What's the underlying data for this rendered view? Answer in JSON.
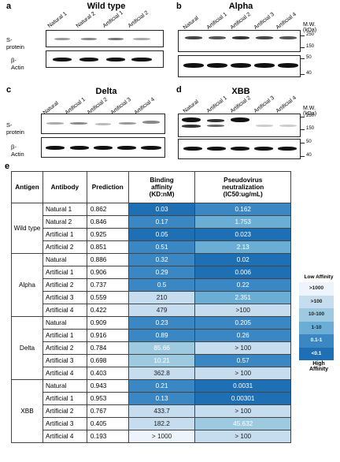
{
  "panels": {
    "a": {
      "letter": "a",
      "title": "Wild type",
      "lanes": [
        "Natural 1",
        "Natural 2",
        "Artificial 1",
        "Artificial 2"
      ],
      "mw": []
    },
    "b": {
      "letter": "b",
      "title": "Alpha",
      "lanes": [
        "Natural",
        "Artificial 1",
        "Artificial 2",
        "Artificial 3",
        "Artificial 4"
      ],
      "mw": [
        "250",
        "150",
        "50",
        "40"
      ]
    },
    "c": {
      "letter": "c",
      "title": "Delta",
      "lanes": [
        "Natural",
        "Artificial 1",
        "Artificial 2",
        "Artificial 3",
        "Artificial 4"
      ],
      "mw": []
    },
    "d": {
      "letter": "d",
      "title": "XBB",
      "lanes": [
        "Natural",
        "Artificial 1",
        "Artificial 2",
        "Artificial 3",
        "Artificial 4"
      ],
      "mw": [
        "250",
        "150",
        "50",
        "40"
      ]
    },
    "mw_title": "M.W.(kDa)",
    "row_s": "S-protein",
    "row_actin": "β-Actin"
  },
  "table": {
    "letter": "e",
    "headers": [
      "Antigen",
      "Antibody",
      "Prediction",
      "Binding affinity (KD:nM)",
      "Pseudovirus neutralization (IC50:ug/mL)"
    ],
    "header_lines": {
      "binding": [
        "Binding",
        "affinity",
        "(KD:nM)"
      ],
      "neut": [
        "Pseudovirus",
        "neutralization",
        "(IC50:ug/mL)"
      ]
    },
    "groups": [
      {
        "antigen": "Wild type",
        "rows": [
          {
            "antibody": "Natural 1",
            "prediction": "0.862",
            "kd": "0.03",
            "ic50": "0.162",
            "kd_level": 5,
            "ic_level": 4
          },
          {
            "antibody": "Natural 2",
            "prediction": "0.846",
            "kd": "0.17",
            "ic50": "1.753",
            "kd_level": 4,
            "ic_level": 3
          },
          {
            "antibody": "Artificial 1",
            "prediction": "0.925",
            "kd": "0.05",
            "ic50": "0.023",
            "kd_level": 5,
            "ic_level": 5
          },
          {
            "antibody": "Artificial 2",
            "prediction": "0.851",
            "kd": "0.51",
            "ic50": "2.13",
            "kd_level": 4,
            "ic_level": 3
          }
        ]
      },
      {
        "antigen": "Alpha",
        "rows": [
          {
            "antibody": "Natural",
            "prediction": "0.886",
            "kd": "0.32",
            "ic50": "0.02",
            "kd_level": 4,
            "ic_level": 5
          },
          {
            "antibody": "Artificial 1",
            "prediction": "0.906",
            "kd": "0.29",
            "ic50": "0.006",
            "kd_level": 4,
            "ic_level": 5
          },
          {
            "antibody": "Artificial 2",
            "prediction": "0.737",
            "kd": "0.5",
            "ic50": "0.22",
            "kd_level": 4,
            "ic_level": 4
          },
          {
            "antibody": "Artificial 3",
            "prediction": "0.559",
            "kd": "210",
            "ic50": "2.351",
            "kd_level": 1,
            "ic_level": 3
          },
          {
            "antibody": "Artificial 4",
            "prediction": "0.422",
            "kd": "479",
            "ic50": ">100",
            "kd_level": 1,
            "ic_level": 1
          }
        ]
      },
      {
        "antigen": "Delta",
        "rows": [
          {
            "antibody": "Natural",
            "prediction": "0.909",
            "kd": "0.23",
            "ic50": "0.205",
            "kd_level": 4,
            "ic_level": 4
          },
          {
            "antibody": "Artificial 1",
            "prediction": "0.916",
            "kd": "0.89",
            "ic50": "0.26",
            "kd_level": 4,
            "ic_level": 4
          },
          {
            "antibody": "Artificial 2",
            "prediction": "0.784",
            "kd": "85.66",
            "ic50": "> 100",
            "kd_level": 2,
            "ic_level": 1
          },
          {
            "antibody": "Artificial 3",
            "prediction": "0.698",
            "kd": "10.21",
            "ic50": "0.57",
            "kd_level": 2,
            "ic_level": 4
          },
          {
            "antibody": "Artificial 4",
            "prediction": "0.403",
            "kd": "362.8",
            "ic50": "> 100",
            "kd_level": 1,
            "ic_level": 1
          }
        ]
      },
      {
        "antigen": "XBB",
        "rows": [
          {
            "antibody": "Natural",
            "prediction": "0.943",
            "kd": "0.21",
            "ic50": "0.0031",
            "kd_level": 4,
            "ic_level": 5
          },
          {
            "antibody": "Artificial 1",
            "prediction": "0.953",
            "kd": "0.13",
            "ic50": "0.00301",
            "kd_level": 4,
            "ic_level": 5
          },
          {
            "antibody": "Artificial 2",
            "prediction": "0.767",
            "kd": "433.7",
            "ic50": "> 100",
            "kd_level": 1,
            "ic_level": 1
          },
          {
            "antibody": "Artificial 3",
            "prediction": "0.405",
            "kd": "182.2",
            "ic50": "45.632",
            "kd_level": 1,
            "ic_level": 2
          },
          {
            "antibody": "Artificial 4",
            "prediction": "0.193",
            "kd": "> 1000",
            "ic50": "> 100",
            "kd_level": 0,
            "ic_level": 1
          }
        ]
      }
    ],
    "legend": {
      "title": "Low Affinity",
      "items": [
        ">1000",
        ">100",
        "10-100",
        "1-10",
        "0.1-1",
        "<0.1"
      ],
      "footer": [
        "High",
        "Affinity"
      ],
      "colors": [
        "#eef4fb",
        "#c6dcef",
        "#9ecae1",
        "#6aaed6",
        "#3a87c4",
        "#1f6fb5"
      ]
    }
  }
}
